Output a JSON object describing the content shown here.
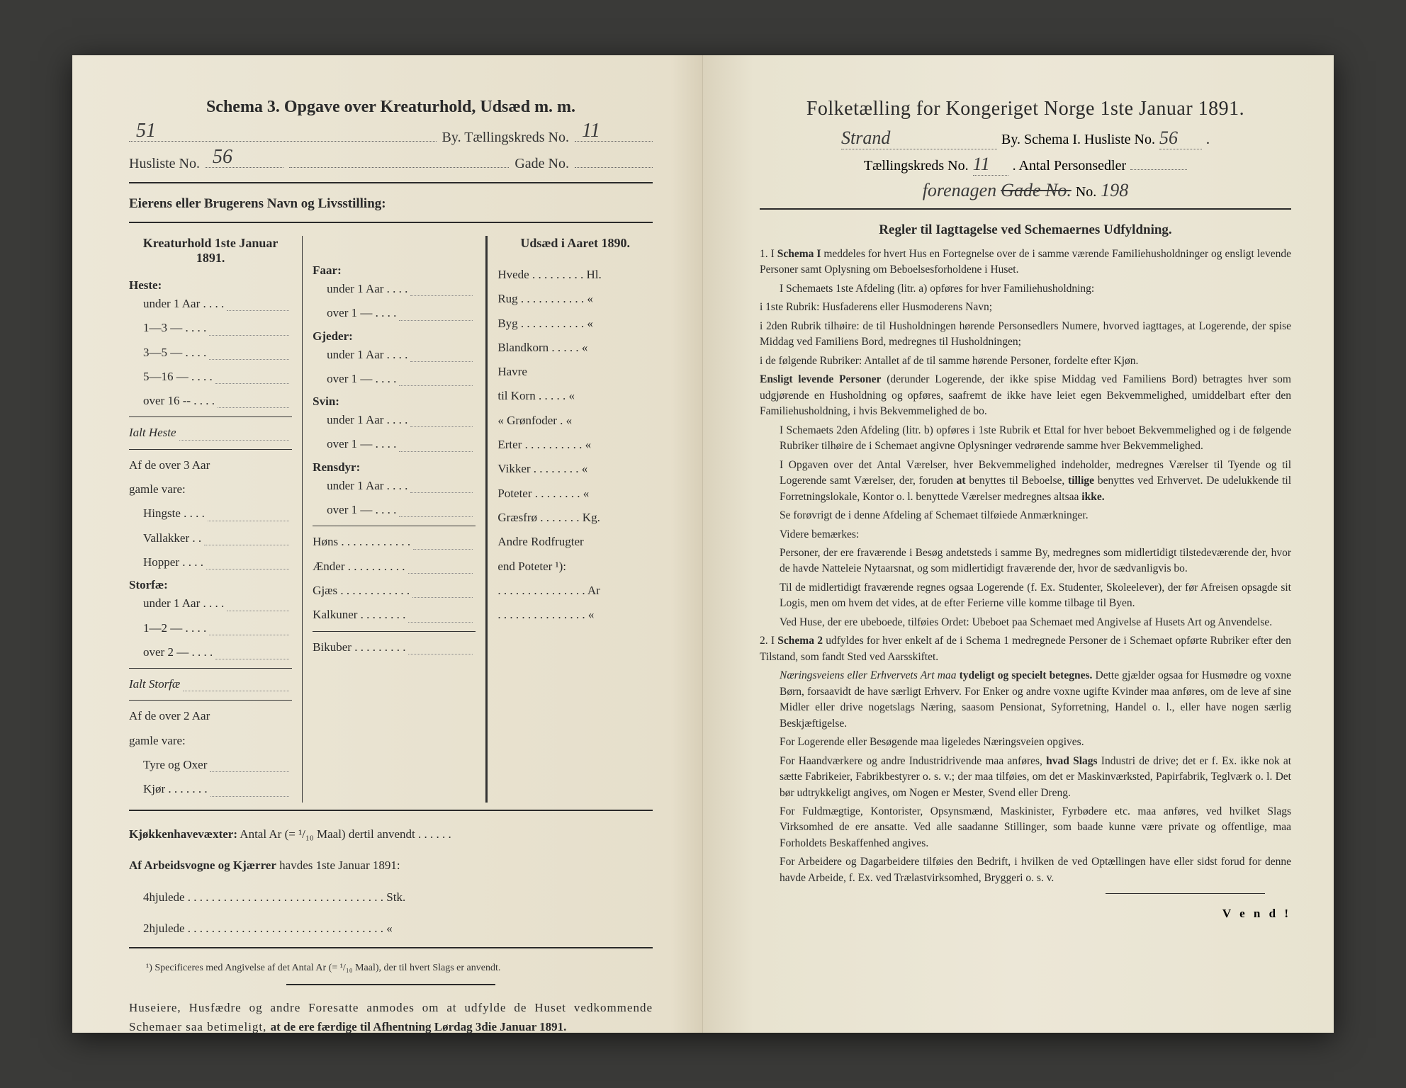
{
  "colors": {
    "paper": "#e8e3d0",
    "ink": "#2a2a2a",
    "background": "#3a3a38",
    "rule": "#333333",
    "dotted": "#888888"
  },
  "typography": {
    "body_family": "Georgia, Times New Roman, serif",
    "hand_family": "Brush Script MT, cursive",
    "left_header_size": 24,
    "right_title_size": 28,
    "body_size": 17,
    "rules_size": 15.5
  },
  "left": {
    "header": "Schema 3.  Opgave over Kreaturhold, Udsæd m. m.",
    "hand_city": "51",
    "label_by": "By.  Tællingskreds No.",
    "hand_kreds": "11",
    "label_husliste": "Husliste No.",
    "hand_husliste": "56",
    "label_gade": "Gade No.",
    "eier": "Eierens eller Brugerens Navn og Livsstilling:",
    "kreatur_head": "Kreaturhold 1ste Januar 1891.",
    "udsaed_head": "Udsæd i Aaret 1890.",
    "col1": {
      "heste": "Heste:",
      "heste_rows": [
        "under 1 Aar . . . .",
        "1—3   —   . . . .",
        "3—5   —   . . . .",
        "5—16  —   . . . .",
        "over 16 --   . . . ."
      ],
      "ialt_heste": "Ialt Heste",
      "af3aar": "Af de over 3 Aar",
      "gamle": "gamle vare:",
      "hingste": "Hingste . . . .",
      "vallakker": "Vallakker . .",
      "hopper": "Hopper . . . .",
      "storfae": "Storfæ:",
      "storfae_rows": [
        "under 1 Aar . . . .",
        "1—2   —   . . . .",
        "over 2   —   . . . ."
      ],
      "ialt_storfae": "Ialt Storfæ",
      "af2aar": "Af de over 2 Aar",
      "tyre": "Tyre og Oxer",
      "kjor": "Kjør . . . . . . ."
    },
    "col2": {
      "faar": "Faar:",
      "faar_rows": [
        "under 1 Aar . . . .",
        "over 1   —   . . . ."
      ],
      "gjeder": "Gjeder:",
      "gjeder_rows": [
        "under 1 Aar . . . .",
        "over 1   —   . . . ."
      ],
      "svin": "Svin:",
      "svin_rows": [
        "under 1 Aar . . . .",
        "over 1   —   . . . ."
      ],
      "rensdyr": "Rensdyr:",
      "rensdyr_rows": [
        "under 1 Aar . . . .",
        "over 1   —   . . . ."
      ],
      "hons": "Høns . . . . . . . . . . . .",
      "aender": "Ænder . . . . . . . . . .",
      "gjaes": "Gjæs . . . . . . . . . . . .",
      "kalkuner": "Kalkuner . . . . . . . .",
      "bikuber": "Bikuber . . . . . . . . ."
    },
    "col3": {
      "rows": [
        "Hvede . . . . . . . . . Hl.",
        "Rug . . . . . . . . . . . «",
        "Byg . . . . . . . . . . . «",
        "Blandkorn . . . . . «",
        "Havre",
        "   til Korn . . . . . «",
        "   « Grønfoder . «",
        "Erter . . . . . . . . . . «",
        "Vikker . . . . . . . . «",
        "Poteter . . . . . . . . «",
        "Græsfrø . . . . . . . Kg.",
        "Andre Rodfrugter",
        "end Poteter ¹):",
        ". . . . . . . . . . . . . . . Ar",
        ". . . . . . . . . . . . . . . «"
      ]
    },
    "kjokken_label": "Kjøkkenhavevæxter:",
    "kjokken_text": "Antal Ar (= ¹/₁₀ Maal) dertil anvendt . . . . . .",
    "arbeids_label": "Af Arbeidsvogne og Kjærrer",
    "arbeids_text": "havdes 1ste Januar 1891:",
    "fourhjul": "4hjulede . . . . . . . . . . . . . . . . . . . . . . . . . . . . . . . . . Stk.",
    "tohjul": "2hjulede . . . . . . . . . . . . . . . . . . . . . . . . . . . . . . . . .  «",
    "footnote": "¹) Specificeres med Angivelse af det Antal Ar (= ¹/₁₀ Maal), der til hvert Slags er anvendt.",
    "appeal": "Huseiere, Husfædre og andre Foresatte anmodes om at udfylde de Huset vedkommende Schemaer saa betimeligt, ",
    "appeal_bold": "at de ere færdige til Afhentning Lørdag 3die Januar 1891."
  },
  "right": {
    "title": "Folketælling for Kongeriget Norge 1ste Januar 1891.",
    "hand_city": "Strand",
    "label_by": "By.   Schema I.   Husliste No.",
    "hand_husliste": "56",
    "label_kreds": "Tællingskreds No.",
    "hand_kreds": "11",
    "label_antal": ".   Antal Personsedler",
    "hand_address_label": "forenagen",
    "hand_gadeno": "Gade No.",
    "hand_gadeno_val": "198",
    "rules_head": "Regler til Iagttagelse ved Schemaernes Udfyldning.",
    "r1a": "1.  I ",
    "r1b": "Schema I",
    "r1c": " meddeles for hvert Hus en Fortegnelse over de i samme værende Familiehusholdninger og ensligt levende Personer samt Oplysning om Beboelsesforholdene i Huset.",
    "r2": "I Schemaets 1ste Afdeling (litr. a) opføres for hver Familiehusholdning:",
    "r3": "i 1ste Rubrik: Husfaderens eller Husmoderens Navn;",
    "r4": "i 2den Rubrik tilhøire: de til Husholdningen hørende Personsedlers Numere, hvorved iagttages, at Logerende, der spise Middag ved Familiens Bord, medregnes til Husholdningen;",
    "r5": "i de følgende Rubriker: Antallet af de til samme hørende Personer, fordelte efter Kjøn.",
    "r6a": "Ensligt levende Personer",
    "r6b": " (derunder Logerende, der ikke spise Middag ved Familiens Bord) betragtes hver som udgjørende en Husholdning og opføres, saafremt de ikke have leiet egen Bekvemmelighed, umiddelbart efter den Familiehusholdning, i hvis Bekvemmelighed de bo.",
    "r7": "I Schemaets 2den Afdeling (litr. b) opføres i 1ste Rubrik et Ettal for hver beboet Bekvemmelighed og i de følgende Rubriker tilhøire de i Schemaet angivne Oplysninger vedrørende samme hver Bekvemmelighed.",
    "r8a": "I Opgaven over det Antal Værelser, hver Bekvemmelighed indeholder, medregnes Værelser til Tyende og til Logerende samt Værelser, der, foruden ",
    "r8b": "at",
    "r8c": " benyttes til Beboelse, ",
    "r8d": "tillige",
    "r8e": " benyttes ved Erhvervet. De udelukkende til Forretningslokale, Kontor o. l. benyttede Værelser medregnes altsaa ",
    "r8f": "ikke.",
    "r9": "Se forøvrigt de i denne Afdeling af Schemaet tilføiede Anmærkninger.",
    "r10": "Videre bemærkes:",
    "r11": "Personer, der ere fraværende i Besøg andetsteds i samme By, medregnes som midlertidigt tilstedeværende der, hvor de havde Natteleie Nytaarsnat, og som midlertidigt fraværende der, hvor de sædvanligvis bo.",
    "r12": "Til de midlertidigt fraværende regnes ogsaa Logerende (f. Ex. Studenter, Skoleelever), der før Afreisen opsagde sit Logis, men om hvem det vides, at de efter Ferierne ville komme tilbage til Byen.",
    "r13": "Ved Huse, der ere ubeboede, tilføies Ordet: Ubeboet paa Schemaet med Angivelse af Husets Art og Anvendelse.",
    "r14a": "2.  I ",
    "r14b": "Schema 2",
    "r14c": " udfyldes for hver enkelt af de i Schema 1 medregnede Personer de i Schemaet opførte Rubriker efter den Tilstand, som fandt Sted ved Aarsskiftet.",
    "r15a": "Næringsveiens eller Erhvervets Art maa ",
    "r15b": "tydeligt og specielt betegnes.",
    "r15c": " Dette gjælder ogsaa for Husmødre og voxne Børn, forsaavidt de have særligt Erhverv. For Enker og andre voxne ugifte Kvinder maa anføres, om de leve af sine Midler eller drive nogetslags Næring, saasom Pensionat, Syforretning, Handel o. l., eller have nogen særlig Beskjæftigelse.",
    "r16": "For Logerende eller Besøgende maa ligeledes Næringsveien opgives.",
    "r17a": "For Haandværkere og andre Industridrivende maa anføres, ",
    "r17b": "hvad Slags",
    "r17c": " Industri de drive; det er f. Ex. ikke nok at sætte Fabrikeier, Fabrikbestyrer o. s. v.; der maa tilføies, om det er Maskinværksted, Papirfabrik, Teglværk o. l.  Det bør udtrykkeligt angives, om Nogen er Mester, Svend eller Dreng.",
    "r18": "For Fuldmægtige, Kontorister, Opsynsmænd, Maskinister, Fyrbødere etc. maa anføres, ved hvilket Slags Virksomhed de ere ansatte. Ved alle saadanne Stillinger, som baade kunne være private og offentlige, maa Forholdets Beskaffenhed angives.",
    "r19": "For Arbeidere og Dagarbeidere tilføies den Bedrift, i hvilken de ved Optællingen have eller sidst forud for denne havde Arbeide, f. Ex. ved Trælastvirksomhed, Bryggeri o. s. v.",
    "vend": "V e n d !"
  }
}
